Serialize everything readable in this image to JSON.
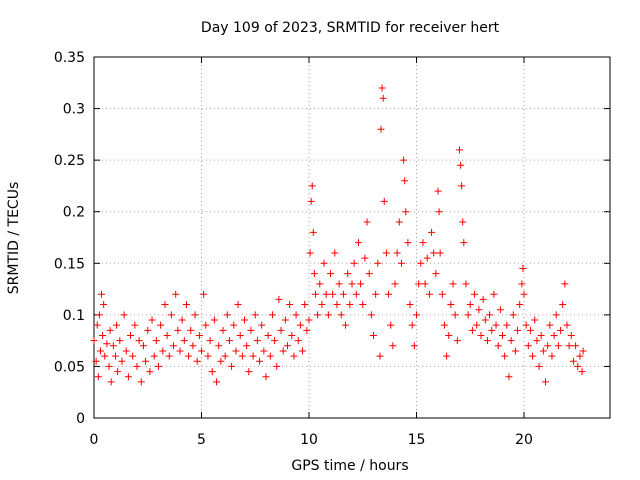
{
  "chart_data": {
    "type": "scatter",
    "title": "Day 109 of 2023, SRMTID for receiver hert",
    "xlabel": "GPS time / hours",
    "ylabel": "SRMTID / TECUs",
    "xlim": [
      0,
      24
    ],
    "ylim": [
      0,
      0.35
    ],
    "xticks": [
      0,
      5,
      10,
      15,
      20
    ],
    "xtick_labels": [
      "0",
      "5",
      "10",
      "15",
      "20"
    ],
    "yticks": [
      0,
      0.05,
      0.1,
      0.15,
      0.2,
      0.25,
      0.3,
      0.35
    ],
    "ytick_labels": [
      "0",
      "0.05",
      "0.1",
      "0.15",
      "0.2",
      "0.25",
      "0.3",
      "0.35"
    ],
    "grid": true,
    "marker": "plus",
    "color": "#ff0000",
    "series": [
      {
        "name": "SRMTID",
        "points": [
          [
            0.0,
            0.075
          ],
          [
            0.1,
            0.055
          ],
          [
            0.15,
            0.09
          ],
          [
            0.2,
            0.04
          ],
          [
            0.25,
            0.1
          ],
          [
            0.3,
            0.065
          ],
          [
            0.35,
            0.12
          ],
          [
            0.4,
            0.08
          ],
          [
            0.45,
            0.11
          ],
          [
            0.5,
            0.06
          ],
          [
            0.6,
            0.072
          ],
          [
            0.7,
            0.05
          ],
          [
            0.75,
            0.085
          ],
          [
            0.8,
            0.035
          ],
          [
            0.9,
            0.07
          ],
          [
            1.0,
            0.06
          ],
          [
            1.05,
            0.09
          ],
          [
            1.1,
            0.045
          ],
          [
            1.2,
            0.075
          ],
          [
            1.3,
            0.055
          ],
          [
            1.4,
            0.1
          ],
          [
            1.5,
            0.065
          ],
          [
            1.6,
            0.04
          ],
          [
            1.7,
            0.08
          ],
          [
            1.8,
            0.06
          ],
          [
            1.9,
            0.09
          ],
          [
            2.0,
            0.05
          ],
          [
            2.1,
            0.075
          ],
          [
            2.2,
            0.035
          ],
          [
            2.3,
            0.07
          ],
          [
            2.4,
            0.055
          ],
          [
            2.5,
            0.085
          ],
          [
            2.6,
            0.045
          ],
          [
            2.7,
            0.095
          ],
          [
            2.8,
            0.06
          ],
          [
            2.9,
            0.075
          ],
          [
            3.0,
            0.05
          ],
          [
            3.1,
            0.09
          ],
          [
            3.2,
            0.065
          ],
          [
            3.3,
            0.11
          ],
          [
            3.4,
            0.08
          ],
          [
            3.5,
            0.06
          ],
          [
            3.6,
            0.1
          ],
          [
            3.7,
            0.07
          ],
          [
            3.8,
            0.12
          ],
          [
            3.9,
            0.085
          ],
          [
            4.0,
            0.065
          ],
          [
            4.1,
            0.095
          ],
          [
            4.2,
            0.075
          ],
          [
            4.3,
            0.11
          ],
          [
            4.4,
            0.06
          ],
          [
            4.5,
            0.085
          ],
          [
            4.6,
            0.07
          ],
          [
            4.7,
            0.1
          ],
          [
            4.8,
            0.055
          ],
          [
            4.9,
            0.08
          ],
          [
            5.0,
            0.065
          ],
          [
            5.1,
            0.12
          ],
          [
            5.2,
            0.09
          ],
          [
            5.3,
            0.06
          ],
          [
            5.4,
            0.075
          ],
          [
            5.5,
            0.045
          ],
          [
            5.6,
            0.095
          ],
          [
            5.7,
            0.035
          ],
          [
            5.8,
            0.07
          ],
          [
            5.9,
            0.055
          ],
          [
            6.0,
            0.085
          ],
          [
            6.1,
            0.06
          ],
          [
            6.2,
            0.1
          ],
          [
            6.3,
            0.075
          ],
          [
            6.4,
            0.05
          ],
          [
            6.5,
            0.09
          ],
          [
            6.6,
            0.065
          ],
          [
            6.7,
            0.11
          ],
          [
            6.8,
            0.08
          ],
          [
            6.9,
            0.06
          ],
          [
            7.0,
            0.095
          ],
          [
            7.1,
            0.07
          ],
          [
            7.2,
            0.045
          ],
          [
            7.3,
            0.085
          ],
          [
            7.4,
            0.06
          ],
          [
            7.5,
            0.1
          ],
          [
            7.6,
            0.075
          ],
          [
            7.7,
            0.055
          ],
          [
            7.8,
            0.09
          ],
          [
            7.9,
            0.065
          ],
          [
            8.0,
            0.04
          ],
          [
            8.1,
            0.08
          ],
          [
            8.2,
            0.06
          ],
          [
            8.3,
            0.1
          ],
          [
            8.4,
            0.075
          ],
          [
            8.5,
            0.05
          ],
          [
            8.6,
            0.115
          ],
          [
            8.7,
            0.085
          ],
          [
            8.8,
            0.065
          ],
          [
            8.9,
            0.095
          ],
          [
            9.0,
            0.07
          ],
          [
            9.1,
            0.11
          ],
          [
            9.2,
            0.08
          ],
          [
            9.3,
            0.06
          ],
          [
            9.4,
            0.1
          ],
          [
            9.5,
            0.075
          ],
          [
            9.6,
            0.09
          ],
          [
            9.7,
            0.065
          ],
          [
            9.8,
            0.11
          ],
          [
            9.9,
            0.085
          ],
          [
            10.0,
            0.095
          ],
          [
            10.05,
            0.16
          ],
          [
            10.1,
            0.21
          ],
          [
            10.15,
            0.225
          ],
          [
            10.2,
            0.18
          ],
          [
            10.25,
            0.14
          ],
          [
            10.3,
            0.12
          ],
          [
            10.4,
            0.1
          ],
          [
            10.5,
            0.13
          ],
          [
            10.6,
            0.11
          ],
          [
            10.7,
            0.15
          ],
          [
            10.8,
            0.12
          ],
          [
            10.9,
            0.1
          ],
          [
            11.0,
            0.14
          ],
          [
            11.1,
            0.12
          ],
          [
            11.2,
            0.16
          ],
          [
            11.3,
            0.11
          ],
          [
            11.4,
            0.13
          ],
          [
            11.5,
            0.1
          ],
          [
            11.6,
            0.12
          ],
          [
            11.7,
            0.09
          ],
          [
            11.8,
            0.14
          ],
          [
            11.9,
            0.11
          ],
          [
            12.0,
            0.13
          ],
          [
            12.1,
            0.15
          ],
          [
            12.2,
            0.12
          ],
          [
            12.3,
            0.17
          ],
          [
            12.4,
            0.13
          ],
          [
            12.5,
            0.11
          ],
          [
            12.6,
            0.155
          ],
          [
            12.7,
            0.19
          ],
          [
            12.8,
            0.14
          ],
          [
            12.9,
            0.1
          ],
          [
            13.0,
            0.08
          ],
          [
            13.1,
            0.12
          ],
          [
            13.2,
            0.15
          ],
          [
            13.3,
            0.06
          ],
          [
            13.35,
            0.28
          ],
          [
            13.4,
            0.32
          ],
          [
            13.45,
            0.31
          ],
          [
            13.5,
            0.21
          ],
          [
            13.6,
            0.16
          ],
          [
            13.7,
            0.12
          ],
          [
            13.8,
            0.09
          ],
          [
            13.9,
            0.07
          ],
          [
            14.0,
            0.13
          ],
          [
            14.1,
            0.16
          ],
          [
            14.2,
            0.19
          ],
          [
            14.3,
            0.15
          ],
          [
            14.4,
            0.25
          ],
          [
            14.45,
            0.23
          ],
          [
            14.5,
            0.2
          ],
          [
            14.6,
            0.17
          ],
          [
            14.7,
            0.11
          ],
          [
            14.8,
            0.09
          ],
          [
            14.9,
            0.07
          ],
          [
            15.0,
            0.1
          ],
          [
            15.1,
            0.13
          ],
          [
            15.2,
            0.15
          ],
          [
            15.3,
            0.17
          ],
          [
            15.4,
            0.13
          ],
          [
            15.5,
            0.155
          ],
          [
            15.6,
            0.12
          ],
          [
            15.7,
            0.18
          ],
          [
            15.8,
            0.16
          ],
          [
            15.9,
            0.14
          ],
          [
            16.0,
            0.22
          ],
          [
            16.05,
            0.2
          ],
          [
            16.1,
            0.16
          ],
          [
            16.2,
            0.12
          ],
          [
            16.3,
            0.09
          ],
          [
            16.4,
            0.06
          ],
          [
            16.5,
            0.08
          ],
          [
            16.6,
            0.11
          ],
          [
            16.7,
            0.13
          ],
          [
            16.8,
            0.1
          ],
          [
            16.9,
            0.075
          ],
          [
            17.0,
            0.26
          ],
          [
            17.05,
            0.245
          ],
          [
            17.1,
            0.225
          ],
          [
            17.15,
            0.19
          ],
          [
            17.2,
            0.17
          ],
          [
            17.3,
            0.13
          ],
          [
            17.4,
            0.1
          ],
          [
            17.5,
            0.11
          ],
          [
            17.6,
            0.085
          ],
          [
            17.7,
            0.12
          ],
          [
            17.8,
            0.09
          ],
          [
            17.9,
            0.105
          ],
          [
            18.0,
            0.08
          ],
          [
            18.1,
            0.115
          ],
          [
            18.2,
            0.095
          ],
          [
            18.3,
            0.075
          ],
          [
            18.4,
            0.1
          ],
          [
            18.5,
            0.085
          ],
          [
            18.6,
            0.12
          ],
          [
            18.7,
            0.09
          ],
          [
            18.8,
            0.07
          ],
          [
            18.9,
            0.105
          ],
          [
            19.0,
            0.08
          ],
          [
            19.1,
            0.06
          ],
          [
            19.2,
            0.09
          ],
          [
            19.3,
            0.04
          ],
          [
            19.4,
            0.075
          ],
          [
            19.5,
            0.1
          ],
          [
            19.6,
            0.065
          ],
          [
            19.7,
            0.085
          ],
          [
            19.8,
            0.11
          ],
          [
            19.9,
            0.13
          ],
          [
            19.95,
            0.145
          ],
          [
            20.0,
            0.12
          ],
          [
            20.1,
            0.09
          ],
          [
            20.2,
            0.07
          ],
          [
            20.3,
            0.085
          ],
          [
            20.4,
            0.06
          ],
          [
            20.5,
            0.095
          ],
          [
            20.6,
            0.075
          ],
          [
            20.7,
            0.05
          ],
          [
            20.8,
            0.08
          ],
          [
            20.9,
            0.065
          ],
          [
            21.0,
            0.035
          ],
          [
            21.1,
            0.07
          ],
          [
            21.2,
            0.09
          ],
          [
            21.3,
            0.06
          ],
          [
            21.4,
            0.08
          ],
          [
            21.5,
            0.1
          ],
          [
            21.6,
            0.07
          ],
          [
            21.7,
            0.085
          ],
          [
            21.8,
            0.11
          ],
          [
            21.9,
            0.13
          ],
          [
            22.0,
            0.09
          ],
          [
            22.1,
            0.07
          ],
          [
            22.2,
            0.08
          ],
          [
            22.3,
            0.055
          ],
          [
            22.4,
            0.07
          ],
          [
            22.5,
            0.05
          ],
          [
            22.6,
            0.06
          ],
          [
            22.7,
            0.045
          ],
          [
            22.75,
            0.065
          ]
        ]
      }
    ]
  }
}
